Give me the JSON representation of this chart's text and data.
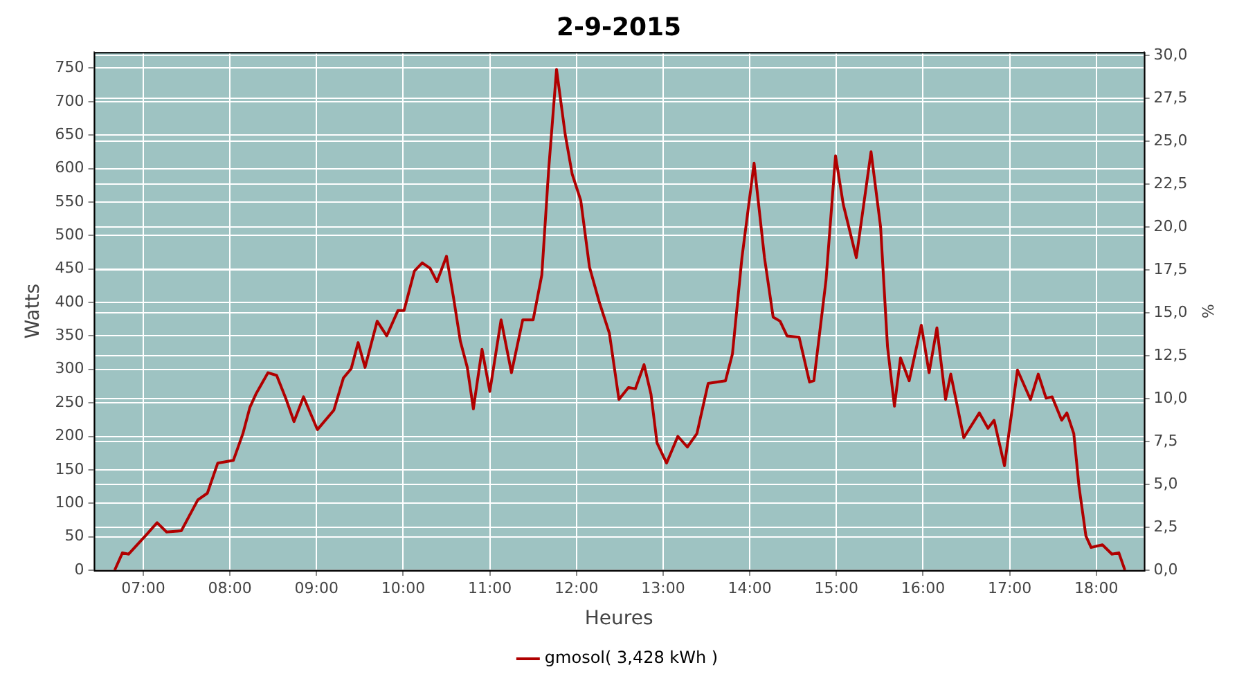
{
  "chart_data": {
    "type": "line",
    "title": "2-9-2015",
    "xlabel": "Heures",
    "ylabel": "Watts",
    "y2label": "%",
    "xlim": [
      6.43,
      18.55
    ],
    "xticks": [
      {
        "value": 7,
        "label": "07:00"
      },
      {
        "value": 8,
        "label": "08:00"
      },
      {
        "value": 9,
        "label": "09:00"
      },
      {
        "value": 10,
        "label": "10:00"
      },
      {
        "value": 11,
        "label": "11:00"
      },
      {
        "value": 12,
        "label": "12:00"
      },
      {
        "value": 13,
        "label": "13:00"
      },
      {
        "value": 14,
        "label": "14:00"
      },
      {
        "value": 15,
        "label": "15:00"
      },
      {
        "value": 16,
        "label": "16:00"
      },
      {
        "value": 17,
        "label": "17:00"
      },
      {
        "value": 18,
        "label": "18:00"
      }
    ],
    "ylim": [
      0,
      774
    ],
    "yticks": [
      0,
      50,
      100,
      150,
      200,
      250,
      300,
      350,
      400,
      450,
      500,
      550,
      600,
      650,
      700,
      750
    ],
    "y2lim": [
      0,
      30.2
    ],
    "y2ticks": [
      {
        "value": 0,
        "label": "0,0"
      },
      {
        "value": 2.5,
        "label": "2,5"
      },
      {
        "value": 5,
        "label": "5,0"
      },
      {
        "value": 7.5,
        "label": "7,5"
      },
      {
        "value": 10,
        "label": "10,0"
      },
      {
        "value": 12.5,
        "label": "12,5"
      },
      {
        "value": 15,
        "label": "15,0"
      },
      {
        "value": 17.5,
        "label": "17,5"
      },
      {
        "value": 20,
        "label": "20,0"
      },
      {
        "value": 22.5,
        "label": "22,5"
      },
      {
        "value": 25,
        "label": "25,0"
      },
      {
        "value": 27.5,
        "label": "27,5"
      },
      {
        "value": 30,
        "label": "30,0"
      }
    ],
    "grid": true,
    "legend": "bottom",
    "marker": "none",
    "line_style": "solid",
    "series": [
      {
        "name": "gmosol( 3,428 kWh )",
        "color": "#b00000",
        "x": [
          6.67,
          6.76,
          6.83,
          7.05,
          7.16,
          7.27,
          7.44,
          7.63,
          7.74,
          7.86,
          8.04,
          8.15,
          8.23,
          8.3,
          8.44,
          8.54,
          8.65,
          8.74,
          8.85,
          9.01,
          9.2,
          9.31,
          9.4,
          9.48,
          9.56,
          9.7,
          9.81,
          9.94,
          10.01,
          10.13,
          10.22,
          10.31,
          10.39,
          10.5,
          10.58,
          10.66,
          10.74,
          10.81,
          10.91,
          11,
          11.13,
          11.25,
          11.38,
          11.5,
          11.6,
          11.68,
          11.77,
          11.87,
          11.95,
          12.05,
          12.15,
          12.26,
          12.38,
          12.49,
          12.6,
          12.68,
          12.78,
          12.86,
          12.93,
          13.04,
          13.17,
          13.28,
          13.39,
          13.52,
          13.72,
          13.8,
          13.91,
          14.05,
          14.17,
          14.27,
          14.35,
          14.43,
          14.57,
          14.69,
          14.74,
          14.88,
          14.99,
          15.08,
          15.23,
          15.4,
          15.51,
          15.59,
          15.67,
          15.74,
          15.84,
          15.98,
          16.07,
          16.16,
          16.26,
          16.32,
          16.47,
          16.65,
          16.75,
          16.82,
          16.94,
          17.09,
          17.24,
          17.33,
          17.42,
          17.49,
          17.6,
          17.66,
          17.74,
          17.8,
          17.88,
          17.94,
          18.07,
          18.18,
          18.26,
          18.33
        ],
        "values": [
          0,
          26,
          24,
          55,
          71,
          57,
          59,
          105,
          115,
          160,
          164,
          204,
          243,
          263,
          295,
          291,
          255,
          222,
          259,
          210,
          239,
          287,
          301,
          340,
          303,
          372,
          350,
          388,
          388,
          447,
          459,
          451,
          431,
          469,
          408,
          342,
          303,
          241,
          330,
          267,
          374,
          295,
          374,
          374,
          441,
          600,
          748,
          651,
          592,
          552,
          453,
          402,
          354,
          255,
          273,
          271,
          307,
          263,
          190,
          160,
          200,
          184,
          204,
          279,
          283,
          323,
          467,
          608,
          467,
          378,
          372,
          350,
          348,
          281,
          283,
          433,
          619,
          546,
          467,
          625,
          513,
          334,
          245,
          317,
          283,
          366,
          295,
          362,
          255,
          293,
          198,
          235,
          212,
          224,
          156,
          299,
          255,
          293,
          257,
          259,
          224,
          235,
          204,
          125,
          51,
          34,
          38,
          24,
          26,
          0
        ]
      }
    ]
  }
}
